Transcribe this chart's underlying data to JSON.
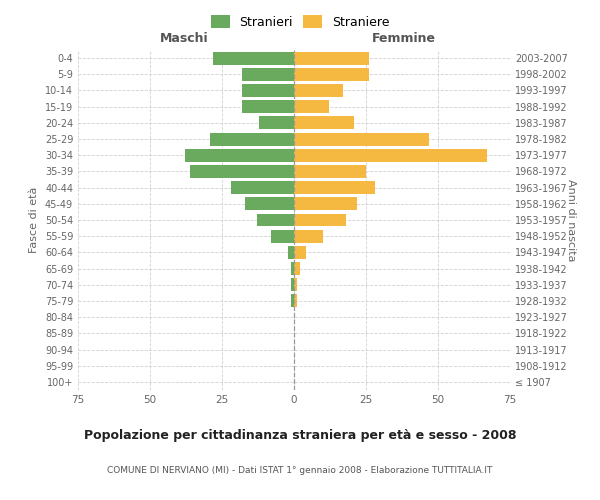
{
  "age_groups": [
    "100+",
    "95-99",
    "90-94",
    "85-89",
    "80-84",
    "75-79",
    "70-74",
    "65-69",
    "60-64",
    "55-59",
    "50-54",
    "45-49",
    "40-44",
    "35-39",
    "30-34",
    "25-29",
    "20-24",
    "15-19",
    "10-14",
    "5-9",
    "0-4"
  ],
  "birth_years": [
    "≤ 1907",
    "1908-1912",
    "1913-1917",
    "1918-1922",
    "1923-1927",
    "1928-1932",
    "1933-1937",
    "1938-1942",
    "1943-1947",
    "1948-1952",
    "1953-1957",
    "1958-1962",
    "1963-1967",
    "1968-1972",
    "1973-1977",
    "1978-1982",
    "1983-1987",
    "1988-1992",
    "1993-1997",
    "1998-2002",
    "2003-2007"
  ],
  "males": [
    0,
    0,
    0,
    0,
    0,
    1,
    1,
    1,
    2,
    8,
    13,
    17,
    22,
    36,
    38,
    29,
    12,
    18,
    18,
    18,
    28
  ],
  "females": [
    0,
    0,
    0,
    0,
    0,
    1,
    1,
    2,
    4,
    10,
    18,
    22,
    28,
    25,
    67,
    47,
    21,
    12,
    17,
    26,
    26
  ],
  "male_color": "#6aaa5e",
  "female_color": "#f5b942",
  "background_color": "#ffffff",
  "grid_color": "#cccccc",
  "title": "Popolazione per cittadinanza straniera per età e sesso - 2008",
  "subtitle": "COMUNE DI NERVIANO (MI) - Dati ISTAT 1° gennaio 2008 - Elaborazione TUTTITALIA.IT",
  "xlabel_left": "Maschi",
  "xlabel_right": "Femmine",
  "ylabel_left": "Fasce di età",
  "ylabel_right": "Anni di nascita",
  "legend_male": "Stranieri",
  "legend_female": "Straniere",
  "xlim": 75,
  "bar_height": 0.8
}
